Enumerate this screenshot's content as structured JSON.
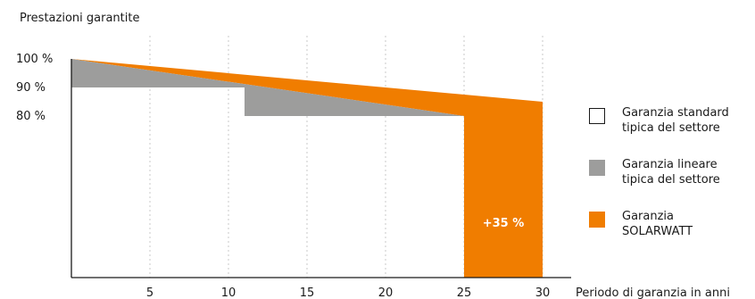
{
  "chart_data": {
    "type": "area",
    "ylabel": "Prestazioni garantite",
    "xlabel": "Periodo di garanzia in anni",
    "xlim": [
      0,
      30
    ],
    "ylim": [
      0,
      100
    ],
    "x_ticks": [
      "5",
      "10",
      "15",
      "20",
      "25",
      "30"
    ],
    "y_ticks": [
      "100 %",
      "90 %",
      "80 %"
    ],
    "grid": "vertical dotted",
    "legend_position": "right",
    "series": [
      {
        "name": "Garanzia SOLARWATT",
        "color": "#f07d00",
        "points": [
          [
            0,
            100
          ],
          [
            30,
            85
          ]
        ],
        "end_year": 30
      },
      {
        "name": "Garanzia lineare tipica del settore",
        "color": "#9d9d9c",
        "points": [
          [
            0,
            100
          ],
          [
            25,
            80
          ]
        ],
        "end_year": 25
      },
      {
        "name": "Garanzia standard tipica del settore",
        "color": "#ffffff",
        "steps": [
          [
            0,
            10,
            90
          ],
          [
            10,
            25,
            80
          ]
        ]
      }
    ],
    "annotations": [
      {
        "text": "+35 %",
        "x": 27.5,
        "y": 45
      }
    ]
  },
  "legend": {
    "items": [
      {
        "line1": "Garanzia standard",
        "line2": "tipica del settore",
        "color": "#ffffff",
        "border": "#1a1a1a"
      },
      {
        "line1": "Garanzia lineare",
        "line2": "tipica del settore",
        "color": "#9d9d9c",
        "border": "#9d9d9c"
      },
      {
        "line1": "Garanzia",
        "line2": "SOLARWATT",
        "color": "#f07d00",
        "border": "#f07d00"
      }
    ]
  }
}
